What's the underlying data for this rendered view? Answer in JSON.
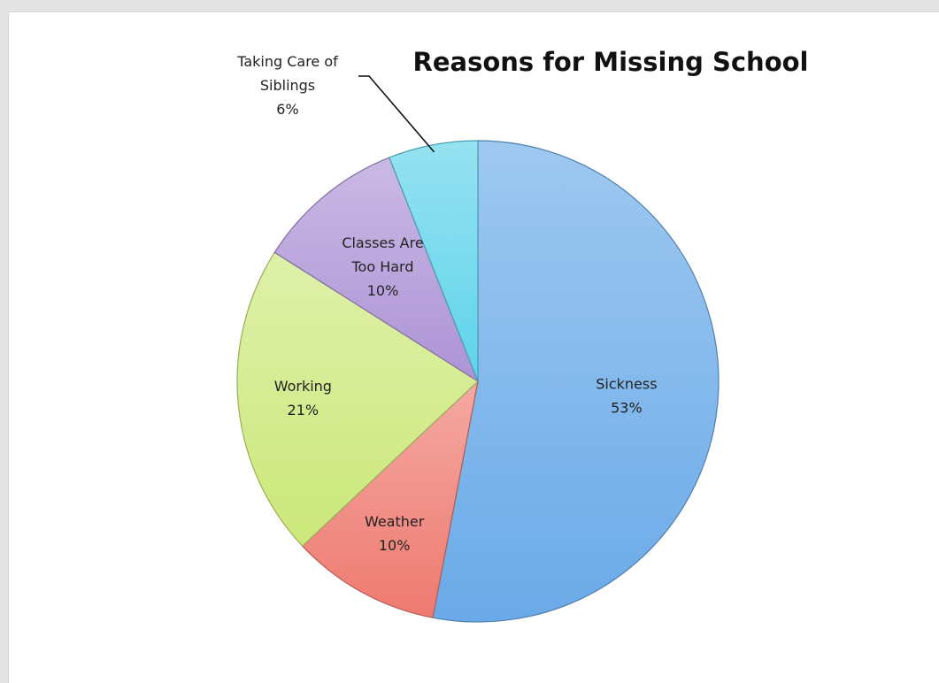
{
  "chart_data": {
    "type": "pie",
    "title": "Reasons for Missing School",
    "slices": [
      {
        "label_lines": [
          "Sickness"
        ],
        "value_label": "53%",
        "value": 53,
        "color": "#6aaae8"
      },
      {
        "label_lines": [
          "Weather"
        ],
        "value_label": "10%",
        "value": 10,
        "color": "#ee7a70"
      },
      {
        "label_lines": [
          "Working"
        ],
        "value_label": "21%",
        "value": 21,
        "color": "#cce87a"
      },
      {
        "label_lines": [
          "Classes Are",
          "Too Hard"
        ],
        "value_label": "10%",
        "value": 10,
        "color": "#ad93d6"
      },
      {
        "label_lines": [
          "Taking Care of",
          "Siblings"
        ],
        "value_label": "6%",
        "value": 6,
        "color": "#5ed3ea"
      }
    ],
    "start_angle_deg": 0,
    "direction": "clockwise",
    "legend": "none"
  }
}
